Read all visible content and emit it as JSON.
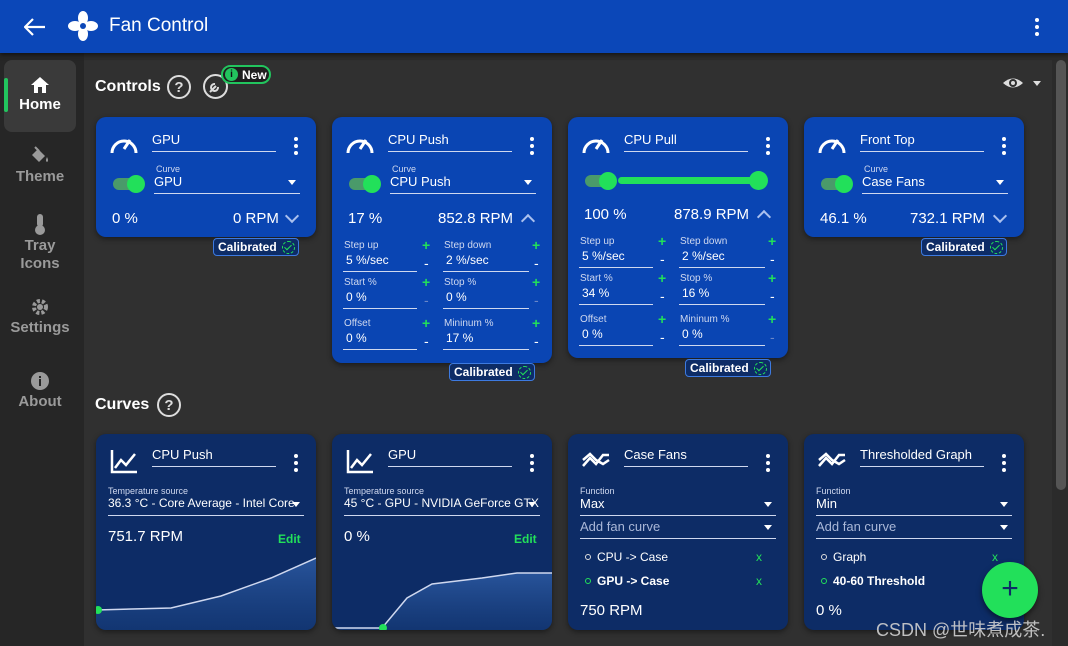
{
  "app": {
    "title": "Fan Control"
  },
  "sidebar": {
    "items": [
      {
        "label": "Home"
      },
      {
        "label": "Theme"
      },
      {
        "label": "Tray\nIcons"
      },
      {
        "label": "Settings"
      },
      {
        "label": "About"
      }
    ]
  },
  "controls": {
    "title": "Controls",
    "new_badge": "New",
    "cards": [
      {
        "name": "GPU",
        "curve_label": "Curve",
        "curve": "GPU",
        "percent": "0 %",
        "rpm": "0 RPM",
        "calibrated": "Calibrated"
      },
      {
        "name": "CPU Push",
        "curve_label": "Curve",
        "curve": "CPU Push",
        "percent": "17 %",
        "rpm": "852.8 RPM",
        "calibrated": "Calibrated",
        "params": {
          "step_up_label": "Step up",
          "step_up": "5 %/sec",
          "step_down_label": "Step down",
          "step_down": "2 %/sec",
          "start_label": "Start %",
          "start": "0 %",
          "stop_label": "Stop %",
          "stop": "0 %",
          "offset_label": "Offset",
          "offset": "0 %",
          "min_label": "Mininum %",
          "min": "17 %"
        }
      },
      {
        "name": "CPU Pull",
        "percent": "100 %",
        "rpm": "878.9 RPM",
        "calibrated": "Calibrated",
        "slider_value": 1.0,
        "params": {
          "step_up_label": "Step up",
          "step_up": "5 %/sec",
          "step_down_label": "Step down",
          "step_down": "2 %/sec",
          "start_label": "Start %",
          "start": "34 %",
          "stop_label": "Stop %",
          "stop": "16 %",
          "offset_label": "Offset",
          "offset": "0 %",
          "min_label": "Mininum %",
          "min": "0 %"
        }
      },
      {
        "name": "Front Top",
        "curve_label": "Curve",
        "curve": "Case Fans",
        "percent": "46.1 %",
        "rpm": "732.1 RPM",
        "calibrated": "Calibrated"
      }
    ]
  },
  "curves": {
    "title": "Curves",
    "cards": [
      {
        "name": "CPU Push",
        "source_label": "Temperature source",
        "source": "36.3 °C - Core Average - Intel Core",
        "value": "751.7 RPM",
        "edit": "Edit"
      },
      {
        "name": "GPU",
        "source_label": "Temperature source",
        "source": "45 °C - GPU - NVIDIA GeForce GTX",
        "value": "0 %",
        "edit": "Edit"
      },
      {
        "name": "Case Fans",
        "function_label": "Function",
        "function": "Max",
        "add_label": "Add fan curve",
        "options": [
          {
            "label": "CPU -> Case",
            "x": "x"
          },
          {
            "label": "GPU -> Case",
            "x": "x"
          }
        ],
        "value": "750 RPM"
      },
      {
        "name": "Thresholded Graph",
        "function_label": "Function",
        "function": "Min",
        "add_label": "Add fan curve",
        "options": [
          {
            "label": "Graph",
            "x": "x"
          },
          {
            "label": "40-60 Threshold",
            "x": ""
          }
        ],
        "value": "0 %"
      }
    ]
  },
  "fab": {
    "label": "+"
  },
  "watermark": "CSDN @世味煮成茶."
}
